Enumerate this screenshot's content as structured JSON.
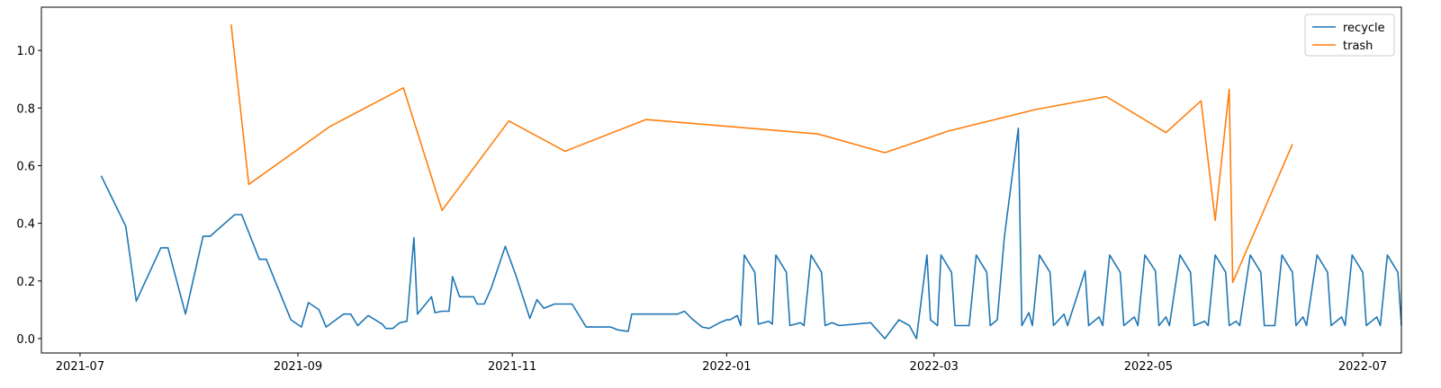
{
  "chart_data": {
    "type": "line",
    "title": "",
    "xlabel": "",
    "ylabel": "",
    "x_ticks": [
      {
        "date": "2021-07-01",
        "label": "2021-07"
      },
      {
        "date": "2021-09-01",
        "label": "2021-09"
      },
      {
        "date": "2021-11-01",
        "label": "2021-11"
      },
      {
        "date": "2022-01-01",
        "label": "2022-01"
      },
      {
        "date": "2022-03-01",
        "label": "2022-03"
      },
      {
        "date": "2022-05-01",
        "label": "2022-05"
      },
      {
        "date": "2022-07-01",
        "label": "2022-07"
      }
    ],
    "y_ticks": [
      0.0,
      0.2,
      0.4,
      0.6,
      0.8,
      1.0
    ],
    "xlim": [
      "2021-06-20",
      "2022-07-12"
    ],
    "ylim": [
      -0.05,
      1.15
    ],
    "grid": false,
    "legend_position": "top-right",
    "series": [
      {
        "name": "recycle",
        "color": "#1f77b4",
        "points": [
          [
            "2021-07-07",
            0.565
          ],
          [
            "2021-07-14",
            0.39
          ],
          [
            "2021-07-17",
            0.13
          ],
          [
            "2021-07-24",
            0.315
          ],
          [
            "2021-07-26",
            0.315
          ],
          [
            "2021-07-31",
            0.085
          ],
          [
            "2021-08-05",
            0.355
          ],
          [
            "2021-08-07",
            0.355
          ],
          [
            "2021-08-14",
            0.43
          ],
          [
            "2021-08-16",
            0.43
          ],
          [
            "2021-08-21",
            0.275
          ],
          [
            "2021-08-23",
            0.275
          ],
          [
            "2021-08-30",
            0.065
          ],
          [
            "2021-09-02",
            0.04
          ],
          [
            "2021-09-04",
            0.125
          ],
          [
            "2021-09-07",
            0.1
          ],
          [
            "2021-09-09",
            0.04
          ],
          [
            "2021-09-14",
            0.085
          ],
          [
            "2021-09-16",
            0.085
          ],
          [
            "2021-09-18",
            0.045
          ],
          [
            "2021-09-21",
            0.08
          ],
          [
            "2021-09-25",
            0.05
          ],
          [
            "2021-09-26",
            0.035
          ],
          [
            "2021-09-28",
            0.035
          ],
          [
            "2021-09-30",
            0.055
          ],
          [
            "2021-10-02",
            0.06
          ],
          [
            "2021-10-04",
            0.35
          ],
          [
            "2021-10-05",
            0.085
          ],
          [
            "2021-10-09",
            0.145
          ],
          [
            "2021-10-10",
            0.09
          ],
          [
            "2021-10-12",
            0.095
          ],
          [
            "2021-10-14",
            0.095
          ],
          [
            "2021-10-15",
            0.215
          ],
          [
            "2021-10-17",
            0.145
          ],
          [
            "2021-10-21",
            0.145
          ],
          [
            "2021-10-22",
            0.12
          ],
          [
            "2021-10-24",
            0.12
          ],
          [
            "2021-10-26",
            0.175
          ],
          [
            "2021-10-30",
            0.32
          ],
          [
            "2021-11-02",
            0.22
          ],
          [
            "2021-11-06",
            0.07
          ],
          [
            "2021-11-08",
            0.135
          ],
          [
            "2021-11-10",
            0.105
          ],
          [
            "2021-11-13",
            0.12
          ],
          [
            "2021-11-18",
            0.12
          ],
          [
            "2021-11-22",
            0.04
          ],
          [
            "2021-11-29",
            0.04
          ],
          [
            "2021-12-01",
            0.03
          ],
          [
            "2021-12-04",
            0.025
          ],
          [
            "2021-12-05",
            0.085
          ],
          [
            "2021-12-18",
            0.085
          ],
          [
            "2021-12-20",
            0.095
          ],
          [
            "2021-12-22",
            0.07
          ],
          [
            "2021-12-25",
            0.04
          ],
          [
            "2021-12-27",
            0.035
          ],
          [
            "2021-12-30",
            0.055
          ],
          [
            "2022-01-01",
            0.065
          ],
          [
            "2022-01-02",
            0.065
          ],
          [
            "2022-01-04",
            0.08
          ],
          [
            "2022-01-05",
            0.045
          ],
          [
            "2022-01-06",
            0.29
          ],
          [
            "2022-01-09",
            0.23
          ],
          [
            "2022-01-10",
            0.05
          ],
          [
            "2022-01-13",
            0.06
          ],
          [
            "2022-01-14",
            0.05
          ],
          [
            "2022-01-15",
            0.29
          ],
          [
            "2022-01-18",
            0.23
          ],
          [
            "2022-01-19",
            0.045
          ],
          [
            "2022-01-22",
            0.055
          ],
          [
            "2022-01-23",
            0.045
          ],
          [
            "2022-01-25",
            0.29
          ],
          [
            "2022-01-28",
            0.23
          ],
          [
            "2022-01-29",
            0.045
          ],
          [
            "2022-01-31",
            0.055
          ],
          [
            "2022-02-02",
            0.045
          ],
          [
            "2022-02-11",
            0.055
          ],
          [
            "2022-02-15",
            0.0
          ],
          [
            "2022-02-19",
            0.065
          ],
          [
            "2022-02-22",
            0.045
          ],
          [
            "2022-02-24",
            0.0
          ],
          [
            "2022-02-27",
            0.29
          ],
          [
            "2022-02-28",
            0.065
          ],
          [
            "2022-03-02",
            0.045
          ],
          [
            "2022-03-03",
            0.29
          ],
          [
            "2022-03-06",
            0.23
          ],
          [
            "2022-03-07",
            0.045
          ],
          [
            "2022-03-11",
            0.045
          ],
          [
            "2022-03-13",
            0.29
          ],
          [
            "2022-03-16",
            0.23
          ],
          [
            "2022-03-17",
            0.045
          ],
          [
            "2022-03-19",
            0.065
          ],
          [
            "2022-03-21",
            0.35
          ],
          [
            "2022-03-25",
            0.73
          ],
          [
            "2022-03-26",
            0.045
          ],
          [
            "2022-03-28",
            0.09
          ],
          [
            "2022-03-29",
            0.045
          ],
          [
            "2022-03-31",
            0.29
          ],
          [
            "2022-04-03",
            0.23
          ],
          [
            "2022-04-04",
            0.045
          ],
          [
            "2022-04-07",
            0.085
          ],
          [
            "2022-04-08",
            0.045
          ],
          [
            "2022-04-13",
            0.235
          ],
          [
            "2022-04-14",
            0.045
          ],
          [
            "2022-04-17",
            0.075
          ],
          [
            "2022-04-18",
            0.045
          ],
          [
            "2022-04-20",
            0.29
          ],
          [
            "2022-04-23",
            0.23
          ],
          [
            "2022-04-24",
            0.045
          ],
          [
            "2022-04-27",
            0.075
          ],
          [
            "2022-04-28",
            0.045
          ],
          [
            "2022-04-30",
            0.29
          ],
          [
            "2022-05-03",
            0.235
          ],
          [
            "2022-05-04",
            0.045
          ],
          [
            "2022-05-06",
            0.075
          ],
          [
            "2022-05-07",
            0.045
          ],
          [
            "2022-05-10",
            0.29
          ],
          [
            "2022-05-13",
            0.23
          ],
          [
            "2022-05-14",
            0.045
          ],
          [
            "2022-05-17",
            0.06
          ],
          [
            "2022-05-18",
            0.045
          ],
          [
            "2022-05-20",
            0.29
          ],
          [
            "2022-05-23",
            0.23
          ],
          [
            "2022-05-24",
            0.045
          ],
          [
            "2022-05-26",
            0.06
          ],
          [
            "2022-05-27",
            0.045
          ],
          [
            "2022-05-30",
            0.29
          ],
          [
            "2022-06-02",
            0.23
          ],
          [
            "2022-06-03",
            0.045
          ],
          [
            "2022-06-06",
            0.045
          ],
          [
            "2022-06-08",
            0.29
          ],
          [
            "2022-06-11",
            0.23
          ],
          [
            "2022-06-12",
            0.045
          ],
          [
            "2022-06-14",
            0.075
          ],
          [
            "2022-06-15",
            0.045
          ],
          [
            "2022-06-18",
            0.29
          ],
          [
            "2022-06-21",
            0.23
          ],
          [
            "2022-06-22",
            0.045
          ],
          [
            "2022-06-25",
            0.075
          ],
          [
            "2022-06-26",
            0.045
          ],
          [
            "2022-06-28",
            0.29
          ],
          [
            "2022-07-01",
            0.23
          ],
          [
            "2022-07-02",
            0.045
          ],
          [
            "2022-07-05",
            0.075
          ],
          [
            "2022-07-06",
            0.045
          ],
          [
            "2022-07-08",
            0.29
          ],
          [
            "2022-07-11",
            0.23
          ],
          [
            "2022-07-12",
            0.045
          ]
        ]
      },
      {
        "name": "trash",
        "color": "#ff7f0e",
        "points": [
          [
            "2021-08-13",
            1.09
          ],
          [
            "2021-08-18",
            0.535
          ],
          [
            "2021-09-10",
            0.735
          ],
          [
            "2021-10-01",
            0.87
          ],
          [
            "2021-10-12",
            0.445
          ],
          [
            "2021-10-31",
            0.755
          ],
          [
            "2021-11-16",
            0.65
          ],
          [
            "2021-12-09",
            0.76
          ],
          [
            "2022-01-27",
            0.71
          ],
          [
            "2022-02-15",
            0.645
          ],
          [
            "2022-03-05",
            0.72
          ],
          [
            "2022-03-30",
            0.795
          ],
          [
            "2022-04-19",
            0.84
          ],
          [
            "2022-05-06",
            0.715
          ],
          [
            "2022-05-16",
            0.825
          ],
          [
            "2022-05-20",
            0.41
          ],
          [
            "2022-05-24",
            0.865
          ],
          [
            "2022-05-25",
            0.195
          ],
          [
            "2022-06-11",
            0.675
          ]
        ]
      }
    ]
  }
}
